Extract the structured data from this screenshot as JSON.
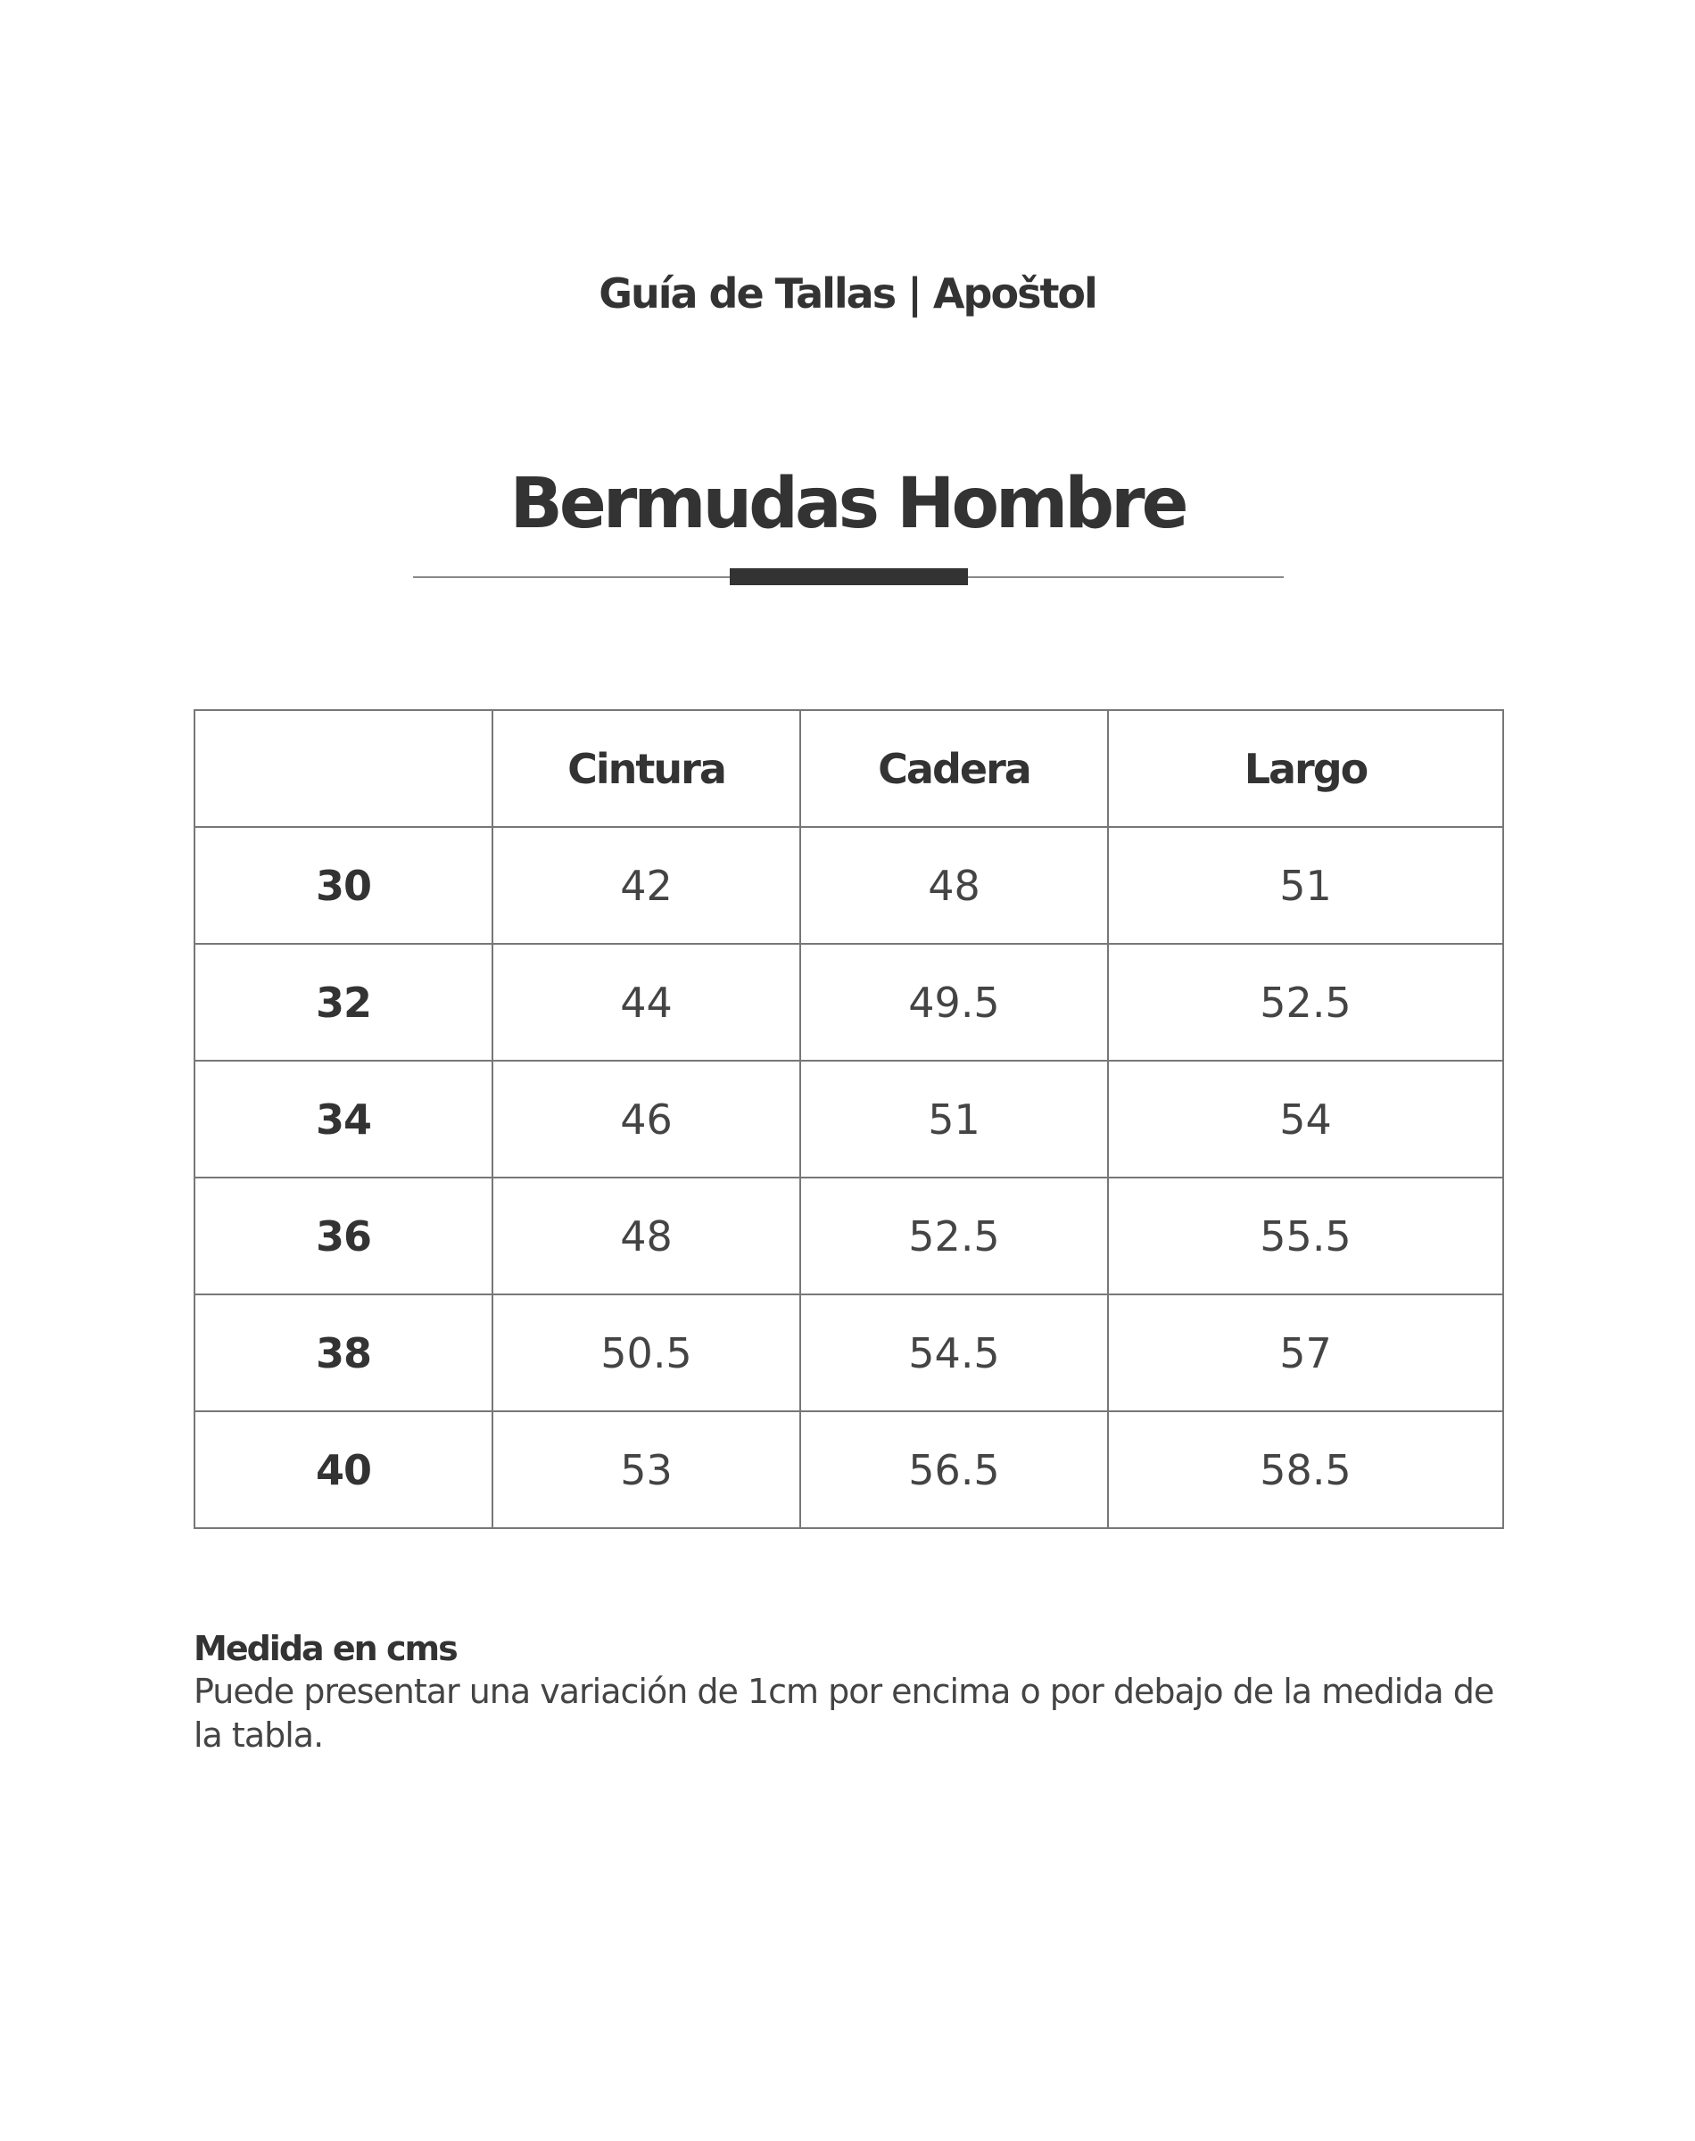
{
  "header": {
    "subtitle": "Guía de Tallas | Apoštol",
    "title": "Bermudas Hombre"
  },
  "table": {
    "columns": [
      "",
      "Cintura",
      "Cadera",
      "Largo"
    ],
    "rows": [
      {
        "size": "30",
        "cintura": "42",
        "cadera": "48",
        "largo": "51"
      },
      {
        "size": "32",
        "cintura": "44",
        "cadera": "49.5",
        "largo": "52.5"
      },
      {
        "size": "34",
        "cintura": "46",
        "cadera": "51",
        "largo": "54"
      },
      {
        "size": "36",
        "cintura": "48",
        "cadera": "52.5",
        "largo": "55.5"
      },
      {
        "size": "38",
        "cintura": "50.5",
        "cadera": "54.5",
        "largo": "57"
      },
      {
        "size": "40",
        "cintura": "53",
        "cadera": "56.5",
        "largo": "58.5"
      }
    ]
  },
  "note": {
    "title": "Medida en cms",
    "text": "Puede presentar una variación de 1cm por encima o por debajo de la medida de la tabla."
  }
}
